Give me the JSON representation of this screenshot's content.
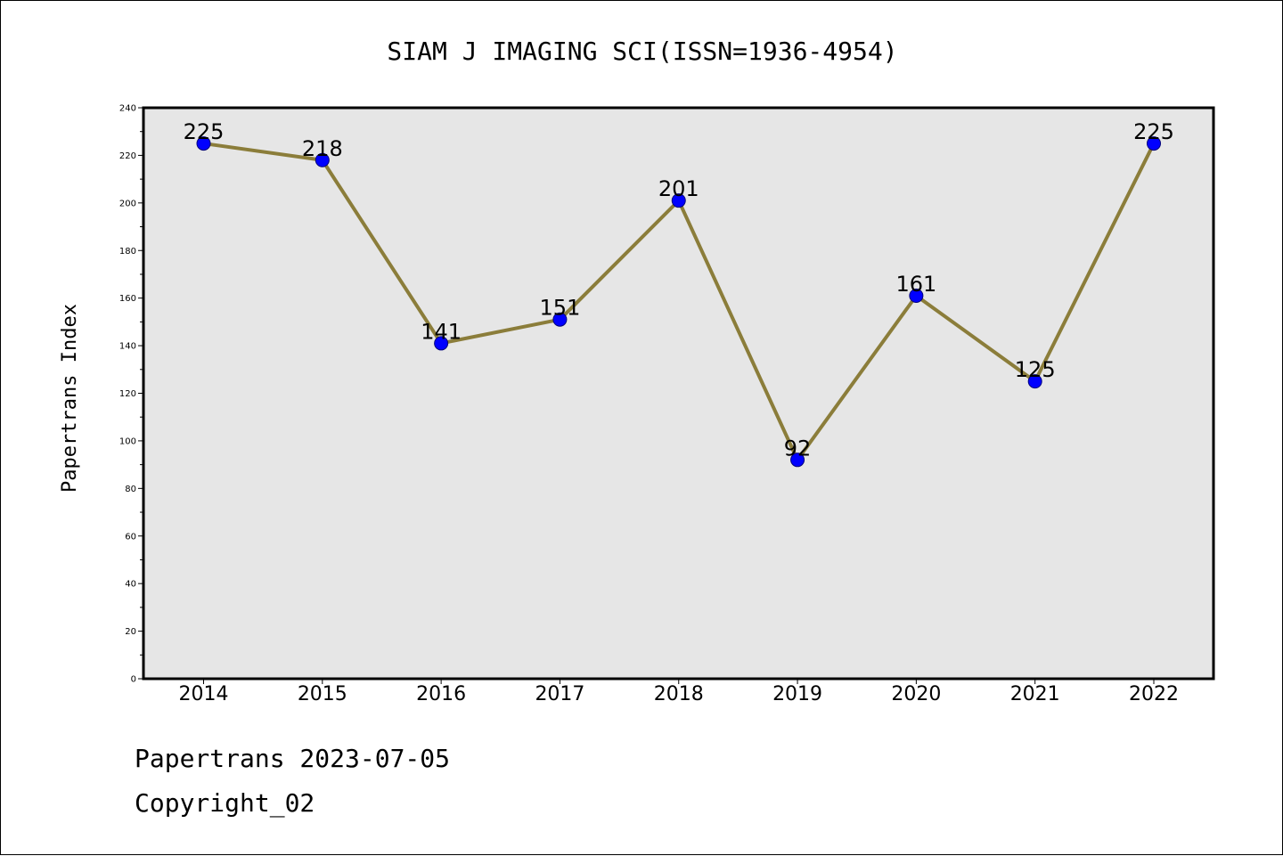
{
  "chart_data": {
    "type": "line",
    "title": "SIAM J IMAGING SCI(ISSN=1936-4954)",
    "xlabel": "",
    "ylabel": "Papertrans Index",
    "categories": [
      "2014",
      "2015",
      "2016",
      "2017",
      "2018",
      "2019",
      "2020",
      "2021",
      "2022"
    ],
    "values": [
      225,
      218,
      141,
      151,
      201,
      92,
      161,
      125,
      225
    ],
    "data_labels": [
      "225",
      "218",
      "141",
      "151",
      "201",
      "92",
      "161",
      "125",
      "225"
    ],
    "ylim": [
      0,
      240
    ],
    "yticks": [
      0,
      20,
      40,
      60,
      80,
      100,
      120,
      140,
      160,
      180,
      200,
      220,
      240
    ],
    "grid": false,
    "line_color": "#8b7d3a",
    "marker_color": "#0000ff",
    "plot_background": "#e6e6e6"
  },
  "footer": {
    "line1": "Papertrans 2023-07-05",
    "line2": "Copyright_02"
  }
}
